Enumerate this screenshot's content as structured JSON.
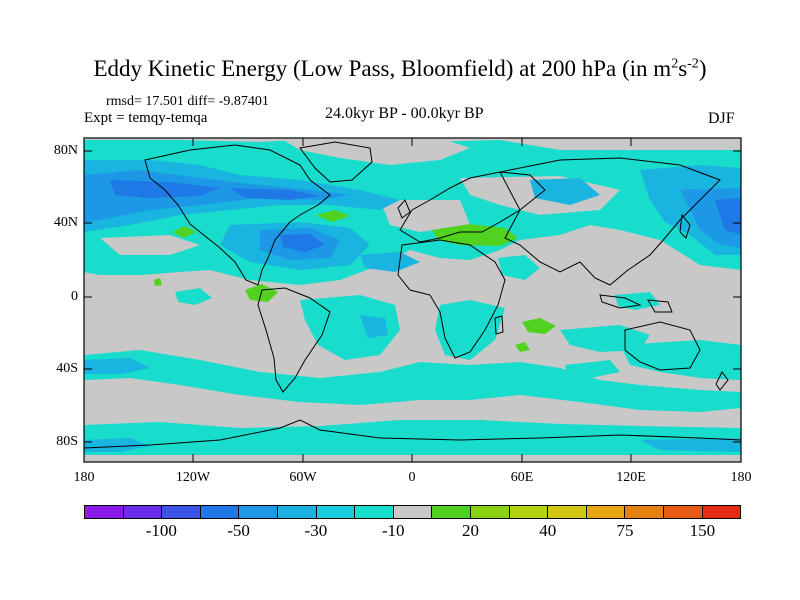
{
  "title": {
    "main": "Eddy Kinetic Energy (Low Pass, Bloomfield) at 200 hPa (in m",
    "sup1": "2",
    "mid": "s",
    "sup2": "-2",
    "end": ")"
  },
  "stats": "rmsd= 17.501 diff= -9.87401",
  "expt": "Expt = temqy-temqa",
  "period": "24.0kyr BP - 00.0kyr BP",
  "season": "DJF",
  "y_ticks": [
    "80N",
    "40N",
    "0",
    "40S",
    "80S"
  ],
  "x_ticks": [
    "180",
    "120W",
    "60W",
    "0",
    "60E",
    "120E",
    "180"
  ],
  "colorbar": {
    "colors": [
      "#8a1ae6",
      "#6a2ee8",
      "#3c55e4",
      "#1e78e6",
      "#1c98e6",
      "#19b4e0",
      "#18cddc",
      "#18dccc",
      "#c8c8c8",
      "#50d21e",
      "#8cd214",
      "#b4d214",
      "#d2c814",
      "#e6a614",
      "#e68214",
      "#e65a14",
      "#e62a14"
    ],
    "labels": [
      "-100",
      "-50",
      "-30",
      "-10",
      "20",
      "40",
      "75",
      "150"
    ]
  },
  "map_colors": {
    "background": "#c8c8c8",
    "light_cyan": "#18dccc",
    "cyan": "#19b4e0",
    "blue": "#1c98e6",
    "dark_blue": "#1e78e6",
    "green": "#50d21e",
    "coast": "#000000"
  }
}
